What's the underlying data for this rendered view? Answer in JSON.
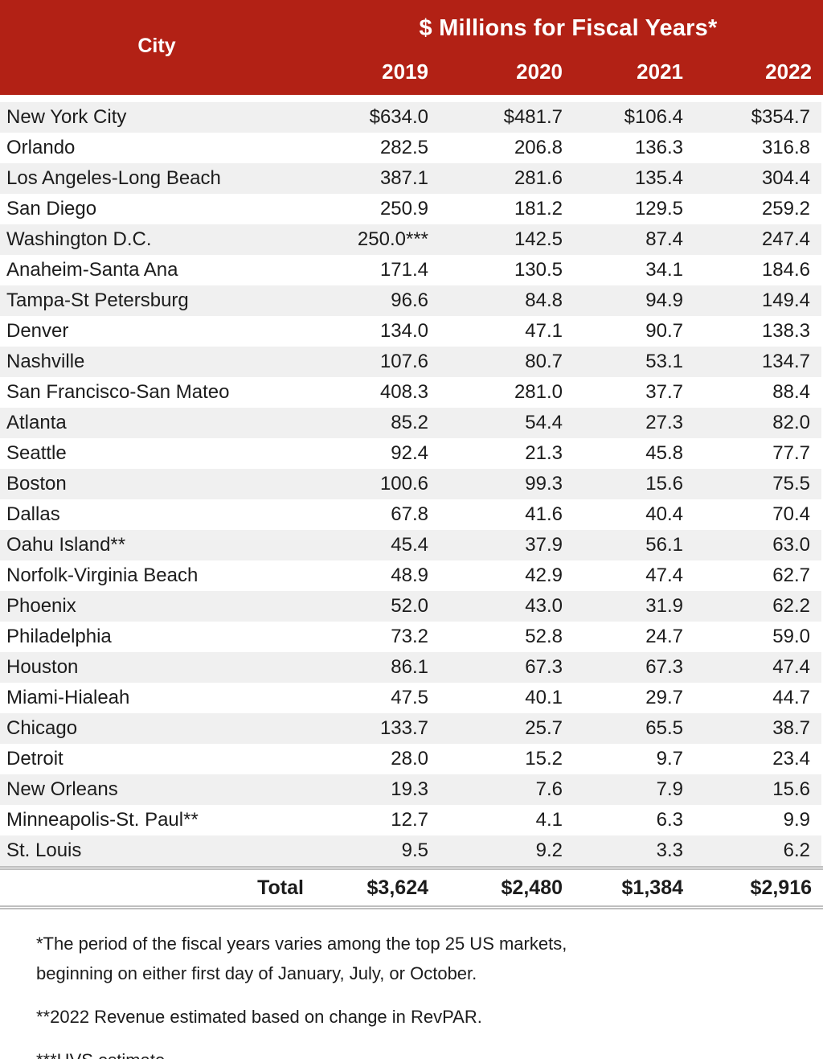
{
  "header": {
    "city_label": "City",
    "group_title": "$ Millions for Fiscal Years*",
    "years": [
      "2019",
      "2020",
      "2021",
      "2022"
    ]
  },
  "table": {
    "rows": [
      {
        "city": "New York City",
        "values": [
          "$634.0",
          "$481.7",
          "$106.4",
          "$354.7"
        ]
      },
      {
        "city": "Orlando",
        "values": [
          "282.5",
          "206.8",
          "136.3",
          "316.8"
        ]
      },
      {
        "city": "Los Angeles-Long Beach",
        "values": [
          "387.1",
          "281.6",
          "135.4",
          "304.4"
        ]
      },
      {
        "city": "San Diego",
        "values": [
          "250.9",
          "181.2",
          "129.5",
          "259.2"
        ]
      },
      {
        "city": "Washington D.C.",
        "values": [
          "250.0***",
          "142.5",
          "87.4",
          "247.4"
        ]
      },
      {
        "city": "Anaheim-Santa Ana",
        "values": [
          "171.4",
          "130.5",
          "34.1",
          "184.6"
        ]
      },
      {
        "city": "Tampa-St Petersburg",
        "values": [
          "96.6",
          "84.8",
          "94.9",
          "149.4"
        ]
      },
      {
        "city": "Denver",
        "values": [
          "134.0",
          "47.1",
          "90.7",
          "138.3"
        ]
      },
      {
        "city": "Nashville",
        "values": [
          "107.6",
          "80.7",
          "53.1",
          "134.7"
        ]
      },
      {
        "city": "San Francisco-San Mateo",
        "values": [
          "408.3",
          "281.0",
          "37.7",
          "88.4"
        ]
      },
      {
        "city": "Atlanta",
        "values": [
          "85.2",
          "54.4",
          "27.3",
          "82.0"
        ]
      },
      {
        "city": "Seattle",
        "values": [
          "92.4",
          "21.3",
          "45.8",
          "77.7"
        ]
      },
      {
        "city": "Boston",
        "values": [
          "100.6",
          "99.3",
          "15.6",
          "75.5"
        ]
      },
      {
        "city": "Dallas",
        "values": [
          "67.8",
          "41.6",
          "40.4",
          "70.4"
        ]
      },
      {
        "city": "Oahu Island**",
        "values": [
          "45.4",
          "37.9",
          "56.1",
          "63.0"
        ]
      },
      {
        "city": "Norfolk-Virginia Beach",
        "values": [
          "48.9",
          "42.9",
          "47.4",
          "62.7"
        ]
      },
      {
        "city": "Phoenix",
        "values": [
          "52.0",
          "43.0",
          "31.9",
          "62.2"
        ]
      },
      {
        "city": "Philadelphia",
        "values": [
          "73.2",
          "52.8",
          "24.7",
          "59.0"
        ]
      },
      {
        "city": "Houston",
        "values": [
          "86.1",
          "67.3",
          "67.3",
          "47.4"
        ]
      },
      {
        "city": "Miami-Hialeah",
        "values": [
          "47.5",
          "40.1",
          "29.7",
          "44.7"
        ]
      },
      {
        "city": "Chicago",
        "values": [
          "133.7",
          "25.7",
          "65.5",
          "38.7"
        ]
      },
      {
        "city": "Detroit",
        "values": [
          "28.0",
          "15.2",
          "9.7",
          "23.4"
        ]
      },
      {
        "city": "New Orleans",
        "values": [
          "19.3",
          "7.6",
          "7.9",
          "15.6"
        ]
      },
      {
        "city": "Minneapolis-St. Paul**",
        "values": [
          "12.7",
          "4.1",
          "6.3",
          "9.9"
        ]
      },
      {
        "city": "St. Louis",
        "values": [
          "9.5",
          "9.2",
          "3.3",
          "6.2"
        ]
      }
    ],
    "total": {
      "label": "Total",
      "values": [
        "$3,624",
        "$2,480",
        "$1,384",
        "$2,916"
      ]
    }
  },
  "footnotes": [
    {
      "lines": [
        "*The period of the fiscal years varies among the top 25 US markets,",
        "beginning on either first day of January, July, or October."
      ]
    },
    {
      "lines": [
        "**2022 Revenue estimated based on change in RevPAR."
      ]
    },
    {
      "lines": [
        "***HVS estimate"
      ]
    }
  ],
  "colors": {
    "header_red": "#b22115",
    "header_text": "#ffffff",
    "row_stripe": "#f0f0f0",
    "rule_gray": "#bfbfbf",
    "body_text": "#1c1c1c"
  },
  "chart_data": {
    "type": "table",
    "title": "$ Millions for Fiscal Years*",
    "columns": [
      "City",
      "2019",
      "2020",
      "2021",
      "2022"
    ],
    "rows": [
      [
        "New York City",
        634.0,
        481.7,
        106.4,
        354.7
      ],
      [
        "Orlando",
        282.5,
        206.8,
        136.3,
        316.8
      ],
      [
        "Los Angeles-Long Beach",
        387.1,
        281.6,
        135.4,
        304.4
      ],
      [
        "San Diego",
        250.9,
        181.2,
        129.5,
        259.2
      ],
      [
        "Washington D.C.",
        250.0,
        142.5,
        87.4,
        247.4
      ],
      [
        "Anaheim-Santa Ana",
        171.4,
        130.5,
        34.1,
        184.6
      ],
      [
        "Tampa-St Petersburg",
        96.6,
        84.8,
        94.9,
        149.4
      ],
      [
        "Denver",
        134.0,
        47.1,
        90.7,
        138.3
      ],
      [
        "Nashville",
        107.6,
        80.7,
        53.1,
        134.7
      ],
      [
        "San Francisco-San Mateo",
        408.3,
        281.0,
        37.7,
        88.4
      ],
      [
        "Atlanta",
        85.2,
        54.4,
        27.3,
        82.0
      ],
      [
        "Seattle",
        92.4,
        21.3,
        45.8,
        77.7
      ],
      [
        "Boston",
        100.6,
        99.3,
        15.6,
        75.5
      ],
      [
        "Dallas",
        67.8,
        41.6,
        40.4,
        70.4
      ],
      [
        "Oahu Island",
        45.4,
        37.9,
        56.1,
        63.0
      ],
      [
        "Norfolk-Virginia Beach",
        48.9,
        42.9,
        47.4,
        62.7
      ],
      [
        "Phoenix",
        52.0,
        43.0,
        31.9,
        62.2
      ],
      [
        "Philadelphia",
        73.2,
        52.8,
        24.7,
        59.0
      ],
      [
        "Houston",
        86.1,
        67.3,
        67.3,
        47.4
      ],
      [
        "Miami-Hialeah",
        47.5,
        40.1,
        29.7,
        44.7
      ],
      [
        "Chicago",
        133.7,
        25.7,
        65.5,
        38.7
      ],
      [
        "Detroit",
        28.0,
        15.2,
        9.7,
        23.4
      ],
      [
        "New Orleans",
        19.3,
        7.6,
        7.9,
        15.6
      ],
      [
        "Minneapolis-St. Paul",
        12.7,
        4.1,
        6.3,
        9.9
      ],
      [
        "St. Louis",
        9.5,
        9.2,
        3.3,
        6.2
      ],
      [
        "Total",
        3624,
        2480,
        1384,
        2916
      ]
    ]
  }
}
